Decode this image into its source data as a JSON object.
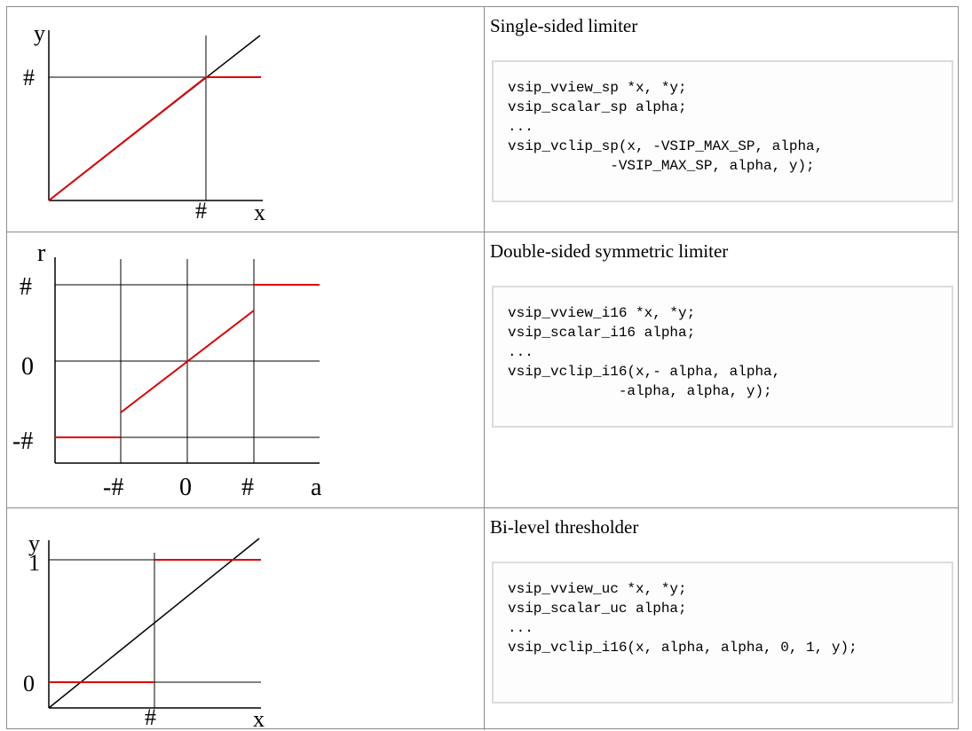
{
  "rows": [
    {
      "caption": "Single-sided limiter",
      "code": "vsip_vview_sp *x, *y;\nvsip_scalar_sp alpha;\n...\nvsip_vclip_sp(x, -VSIP_MAX_SP, alpha,\n            -VSIP_MAX_SP, alpha, y);",
      "graph": {
        "y_label": "y",
        "x_label": "x",
        "level_label": "#",
        "threshold_label": "#"
      }
    },
    {
      "caption": "Double-sided symmetric limiter",
      "code": "vsip_vview_i16 *x, *y;\nvsip_scalar_i16 alpha;\n...\nvsip_vclip_i16(x,- alpha, alpha,\n             -alpha, alpha, y);",
      "graph": {
        "y_label": "r",
        "x_label": "a",
        "top_label": "#",
        "zero_label": "0",
        "bottom_label": "-#",
        "x_neg_label": "-#",
        "x_zero_label": "0",
        "x_pos_label": "#"
      }
    },
    {
      "caption": "Bi-level thresholder",
      "code": "vsip_vview_uc *x, *y;\nvsip_scalar_uc alpha;\n...\nvsip_vclip_i16(x, alpha, alpha, 0, 1, y);",
      "graph": {
        "y_label": "y",
        "x_label": "x",
        "one_label": "1",
        "zero_label": "0",
        "threshold_label": "#"
      }
    }
  ],
  "colors": {
    "clip_line": "#dd0000",
    "axis": "#000000",
    "border": "#8c8c8c",
    "code_border": "#dcdcdc"
  }
}
